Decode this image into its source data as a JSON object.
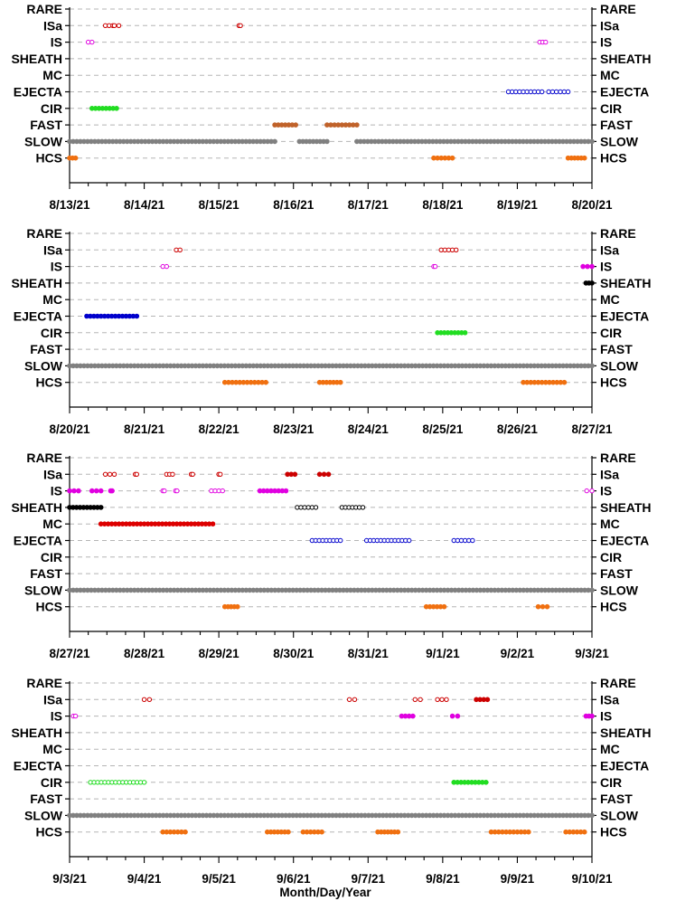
{
  "chart_data": {
    "type": "scatter",
    "xlabel": "Month/Day/Year",
    "categories": [
      "RARE",
      "ISa",
      "IS",
      "SHEATH",
      "MC",
      "EJECTA",
      "CIR",
      "FAST",
      "SLOW",
      "HCS"
    ],
    "colors": {
      "ISa": "#cc0000",
      "IS": "#e000e0",
      "SHEATH": "#000000",
      "MC": "#dd0000",
      "EJECTA": "#0000cc",
      "CIR": "#22dd22",
      "FAST": "#c0622a",
      "SLOW": "#808080",
      "HCS": "#f07010"
    },
    "panels": [
      {
        "x_ticks": [
          "8/13/21",
          "8/14/21",
          "8/15/21",
          "8/16/21",
          "8/17/21",
          "8/18/21",
          "8/19/21",
          "8/20/21"
        ],
        "xlim": [
          0,
          7
        ],
        "segments": [
          {
            "c": "ISa",
            "s": 0.48,
            "e": 0.58,
            "hollow": true
          },
          {
            "c": "ISa",
            "s": 0.6,
            "e": 0.66,
            "hollow": true
          },
          {
            "c": "ISa",
            "s": 2.27,
            "e": 2.29,
            "hollow": true
          },
          {
            "c": "IS",
            "s": 0.25,
            "e": 0.3,
            "hollow": true
          },
          {
            "c": "IS",
            "s": 6.3,
            "e": 6.38,
            "hollow": true
          },
          {
            "c": "EJECTA",
            "s": 5.88,
            "e": 6.33,
            "hollow": true
          },
          {
            "c": "EJECTA",
            "s": 6.42,
            "e": 6.68,
            "hollow": true
          },
          {
            "c": "CIR",
            "s": 0.3,
            "e": 0.63,
            "hollow": false
          },
          {
            "c": "FAST",
            "s": 2.75,
            "e": 3.03,
            "hollow": false
          },
          {
            "c": "FAST",
            "s": 3.45,
            "e": 3.85,
            "hollow": false
          },
          {
            "c": "SLOW",
            "s": 0.0,
            "e": 2.75,
            "hollow": false
          },
          {
            "c": "SLOW",
            "s": 3.08,
            "e": 3.45,
            "hollow": false
          },
          {
            "c": "SLOW",
            "s": 3.85,
            "e": 7.0,
            "hollow": false
          },
          {
            "c": "HCS",
            "s": 0.0,
            "e": 0.08,
            "hollow": false
          },
          {
            "c": "HCS",
            "s": 4.88,
            "e": 5.13,
            "hollow": false
          },
          {
            "c": "HCS",
            "s": 6.68,
            "e": 6.9,
            "hollow": false
          }
        ]
      },
      {
        "x_ticks": [
          "8/20/21",
          "8/21/21",
          "8/22/21",
          "8/23/21",
          "8/24/21",
          "8/25/21",
          "8/26/21",
          "8/27/21"
        ],
        "xlim": [
          0,
          7
        ],
        "segments": [
          {
            "c": "ISa",
            "s": 1.43,
            "e": 1.48,
            "hollow": true
          },
          {
            "c": "ISa",
            "s": 4.98,
            "e": 5.18,
            "hollow": true
          },
          {
            "c": "IS",
            "s": 1.25,
            "e": 1.3,
            "hollow": true
          },
          {
            "c": "IS",
            "s": 4.88,
            "e": 4.9,
            "hollow": true
          },
          {
            "c": "IS",
            "s": 6.88,
            "e": 7.0,
            "hollow": false
          },
          {
            "c": "SHEATH",
            "s": 6.92,
            "e": 7.0,
            "hollow": false
          },
          {
            "c": "EJECTA",
            "s": 0.23,
            "e": 0.9,
            "hollow": false
          },
          {
            "c": "CIR",
            "s": 4.93,
            "e": 5.3,
            "hollow": false
          },
          {
            "c": "SLOW",
            "s": 0.0,
            "e": 7.0,
            "hollow": false
          },
          {
            "c": "HCS",
            "s": 2.08,
            "e": 2.63,
            "hollow": false
          },
          {
            "c": "HCS",
            "s": 3.35,
            "e": 3.63,
            "hollow": false
          },
          {
            "c": "HCS",
            "s": 6.08,
            "e": 6.63,
            "hollow": false
          }
        ]
      },
      {
        "x_ticks": [
          "8/27/21",
          "8/28/21",
          "8/29/21",
          "8/30/21",
          "8/31/21",
          "9/1/21",
          "9/2/21",
          "9/3/21"
        ],
        "xlim": [
          0,
          7
        ],
        "segments": [
          {
            "c": "ISa",
            "s": 0.48,
            "e": 0.6,
            "hollow": true
          },
          {
            "c": "ISa",
            "s": 0.88,
            "e": 0.9,
            "hollow": true
          },
          {
            "c": "ISa",
            "s": 1.3,
            "e": 1.38,
            "hollow": true
          },
          {
            "c": "ISa",
            "s": 1.63,
            "e": 1.65,
            "hollow": true
          },
          {
            "c": "ISa",
            "s": 2.0,
            "e": 2.02,
            "hollow": true
          },
          {
            "c": "ISa",
            "s": 2.92,
            "e": 3.02,
            "hollow": false
          },
          {
            "c": "ISa",
            "s": 3.35,
            "e": 3.47,
            "hollow": false
          },
          {
            "c": "IS",
            "s": 0.0,
            "e": 0.12,
            "hollow": false
          },
          {
            "c": "IS",
            "s": 0.3,
            "e": 0.42,
            "hollow": false
          },
          {
            "c": "IS",
            "s": 0.55,
            "e": 0.57,
            "hollow": false
          },
          {
            "c": "IS",
            "s": 1.25,
            "e": 1.27,
            "hollow": true
          },
          {
            "c": "IS",
            "s": 1.42,
            "e": 1.44,
            "hollow": true
          },
          {
            "c": "IS",
            "s": 1.9,
            "e": 2.05,
            "hollow": true
          },
          {
            "c": "IS",
            "s": 2.55,
            "e": 2.9,
            "hollow": false
          },
          {
            "c": "IS",
            "s": 6.93,
            "e": 7.0,
            "hollow": true
          },
          {
            "c": "SHEATH",
            "s": 0.0,
            "e": 0.42,
            "hollow": false
          },
          {
            "c": "SHEATH",
            "s": 3.05,
            "e": 3.3,
            "hollow": true
          },
          {
            "c": "SHEATH",
            "s": 3.65,
            "e": 3.93,
            "hollow": true
          },
          {
            "c": "MC",
            "s": 0.42,
            "e": 1.92,
            "hollow": false
          },
          {
            "c": "EJECTA",
            "s": 3.25,
            "e": 3.63,
            "hollow": true
          },
          {
            "c": "EJECTA",
            "s": 3.98,
            "e": 4.55,
            "hollow": true
          },
          {
            "c": "EJECTA",
            "s": 5.15,
            "e": 5.4,
            "hollow": true
          },
          {
            "c": "SLOW",
            "s": 0.0,
            "e": 7.0,
            "hollow": false
          },
          {
            "c": "HCS",
            "s": 2.08,
            "e": 2.25,
            "hollow": false
          },
          {
            "c": "HCS",
            "s": 4.78,
            "e": 5.02,
            "hollow": false
          },
          {
            "c": "HCS",
            "s": 6.28,
            "e": 6.4,
            "hollow": false
          }
        ]
      },
      {
        "x_ticks": [
          "9/3/21",
          "9/4/21",
          "9/5/21",
          "9/6/21",
          "9/7/21",
          "9/8/21",
          "9/9/21",
          "9/10/21"
        ],
        "xlim": [
          0,
          7
        ],
        "segments": [
          {
            "c": "ISa",
            "s": 1.0,
            "e": 1.07,
            "hollow": true
          },
          {
            "c": "ISa",
            "s": 3.75,
            "e": 3.82,
            "hollow": true
          },
          {
            "c": "ISa",
            "s": 4.63,
            "e": 4.7,
            "hollow": true
          },
          {
            "c": "ISa",
            "s": 4.93,
            "e": 5.05,
            "hollow": true
          },
          {
            "c": "ISa",
            "s": 5.45,
            "e": 5.6,
            "hollow": false
          },
          {
            "c": "IS",
            "s": 0.05,
            "e": 0.08,
            "hollow": true
          },
          {
            "c": "IS",
            "s": 4.45,
            "e": 4.6,
            "hollow": false
          },
          {
            "c": "IS",
            "s": 5.13,
            "e": 5.2,
            "hollow": false
          },
          {
            "c": "IS",
            "s": 6.92,
            "e": 7.0,
            "hollow": false
          },
          {
            "c": "CIR",
            "s": 0.28,
            "e": 1.0,
            "hollow": true
          },
          {
            "c": "CIR",
            "s": 5.15,
            "e": 5.58,
            "hollow": false
          },
          {
            "c": "SLOW",
            "s": 0.0,
            "e": 7.0,
            "hollow": false
          },
          {
            "c": "HCS",
            "s": 1.25,
            "e": 1.55,
            "hollow": false
          },
          {
            "c": "HCS",
            "s": 2.65,
            "e": 2.93,
            "hollow": false
          },
          {
            "c": "HCS",
            "s": 3.13,
            "e": 3.38,
            "hollow": false
          },
          {
            "c": "HCS",
            "s": 4.13,
            "e": 4.4,
            "hollow": false
          },
          {
            "c": "HCS",
            "s": 5.65,
            "e": 6.15,
            "hollow": false
          },
          {
            "c": "HCS",
            "s": 6.65,
            "e": 6.9,
            "hollow": false
          }
        ]
      }
    ]
  }
}
